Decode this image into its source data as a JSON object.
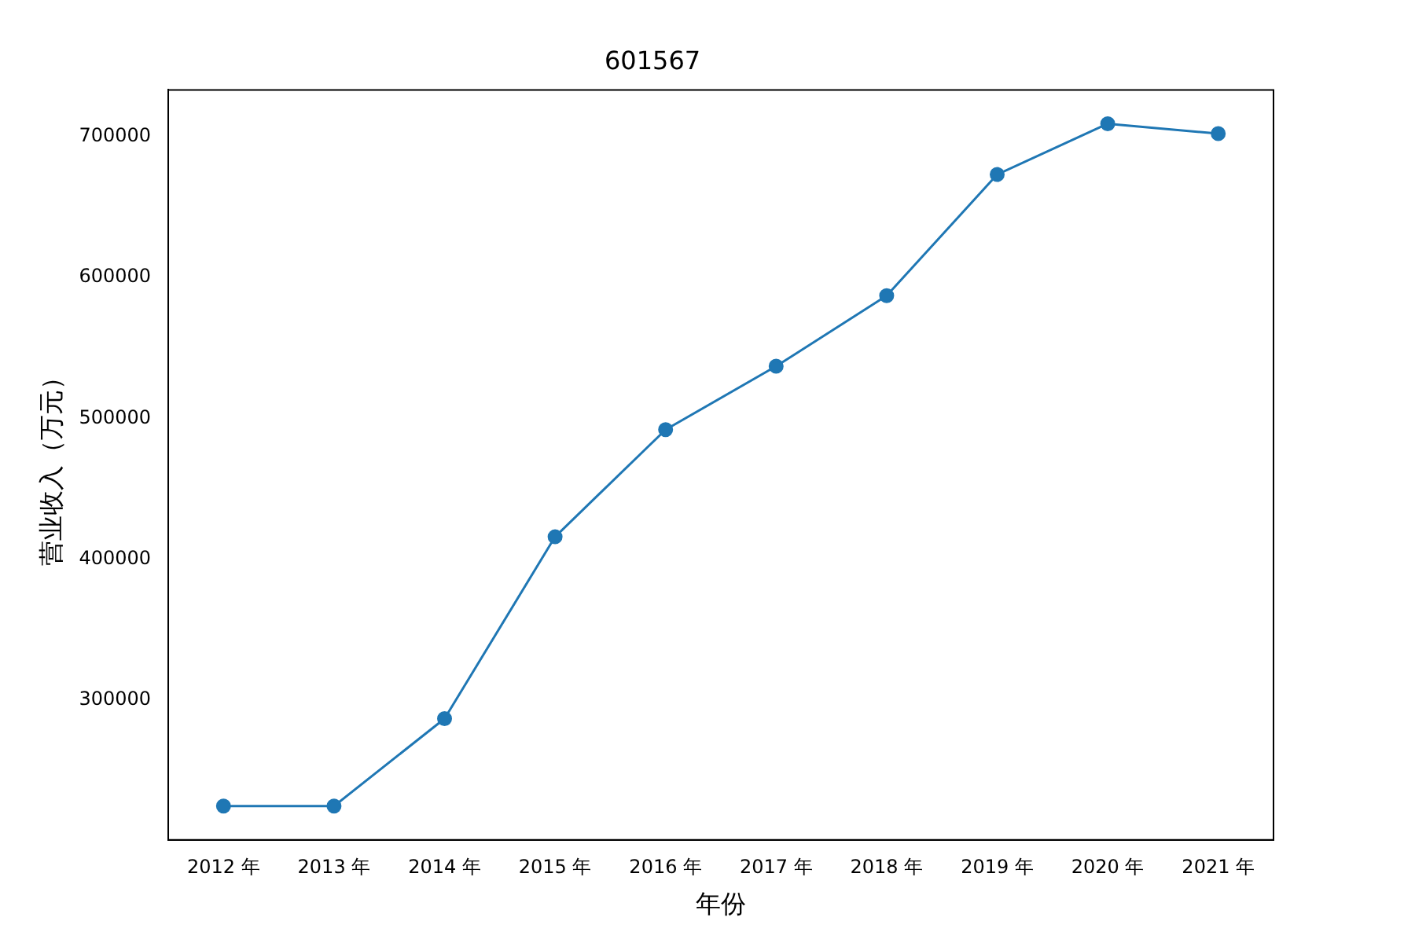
{
  "chart_data": {
    "type": "line",
    "title": "601567",
    "xlabel": "年份",
    "ylabel": "营业收入（万元）",
    "categories": [
      "2012 年",
      "2013 年",
      "2014 年",
      "2015 年",
      "2016 年",
      "2017 年",
      "2018 年",
      "2019 年",
      "2020 年",
      "2021 年"
    ],
    "series": [
      {
        "color": "#1f77b4",
        "values": [
          225000,
          225000,
          287000,
          416000,
          492000,
          537000,
          587000,
          673000,
          709000,
          702000
        ]
      }
    ],
    "ylim": [
      201000,
      733000
    ],
    "yticks": [
      300000,
      400000,
      500000,
      600000,
      700000
    ],
    "marker": "circle",
    "line_style": "solid",
    "grid": false,
    "legend": false
  }
}
